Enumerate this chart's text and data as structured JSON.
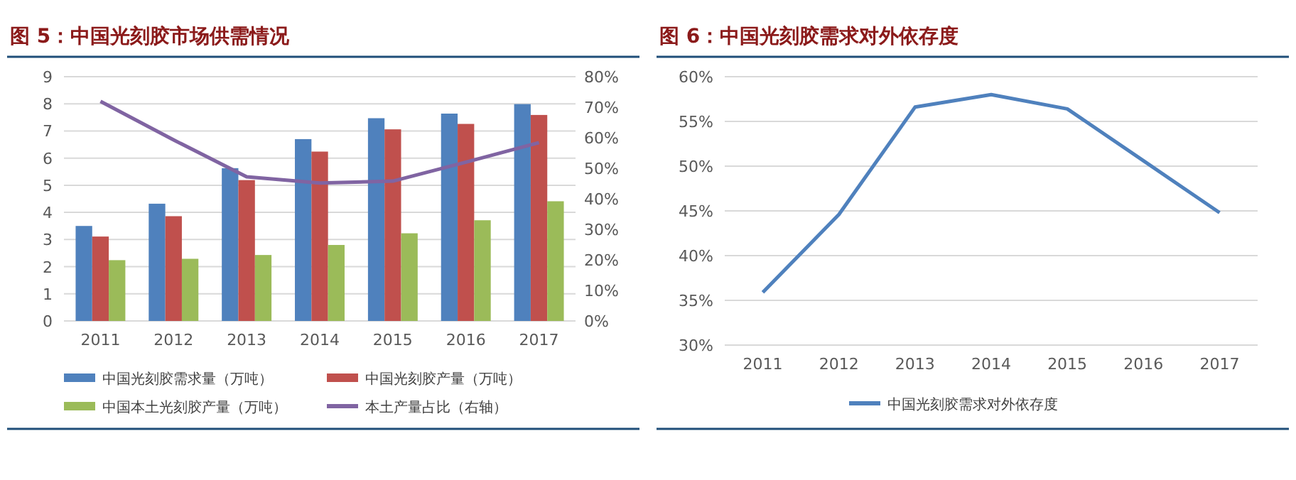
{
  "chart_data": [
    {
      "type": "bar",
      "title": "图 5：中国光刻胶市场供需情况",
      "categories": [
        "2011",
        "2012",
        "2013",
        "2014",
        "2015",
        "2016",
        "2017"
      ],
      "series": [
        {
          "name": "中国光刻胶需求量（万吨）",
          "color": "#4f81bd",
          "values": [
            3.5,
            4.32,
            5.63,
            6.7,
            7.47,
            7.64,
            7.99
          ]
        },
        {
          "name": "中国光刻胶产量（万吨）",
          "color": "#c0504d",
          "values": [
            3.11,
            3.86,
            5.19,
            6.24,
            7.06,
            7.26,
            7.59
          ]
        },
        {
          "name": "中国本土光刻胶产量（万吨）",
          "color": "#9bbb59",
          "values": [
            2.24,
            2.29,
            2.43,
            2.8,
            3.23,
            3.71,
            4.41
          ]
        },
        {
          "name": "本土产量占比（右轴）",
          "color": "#8064a2",
          "type": "line",
          "axis": "y2",
          "values": [
            71.9,
            59.3,
            47.2,
            45.2,
            45.8,
            52.0,
            58.4
          ]
        }
      ],
      "ylim": [
        0,
        9
      ],
      "yticks": [
        0,
        1,
        2,
        3,
        4,
        5,
        6,
        7,
        8,
        9
      ],
      "y2lim": [
        0,
        80
      ],
      "y2ticks": [
        {
          "value": 0,
          "label": "0%"
        },
        {
          "value": 10,
          "label": "10%"
        },
        {
          "value": 20,
          "label": "20%"
        },
        {
          "value": 30,
          "label": "30%"
        },
        {
          "value": 40,
          "label": "40%"
        },
        {
          "value": 50,
          "label": "50%"
        },
        {
          "value": 60,
          "label": "60%"
        },
        {
          "value": 70,
          "label": "70%"
        },
        {
          "value": 80,
          "label": "80%"
        }
      ],
      "grid": "y",
      "legend": "bottom"
    },
    {
      "type": "line",
      "title": "图 6：中国光刻胶需求对外依存度",
      "categories": [
        "2011",
        "2012",
        "2013",
        "2014",
        "2015",
        "2016",
        "2017"
      ],
      "series": [
        {
          "name": "中国光刻胶需求对外依存度",
          "color": "#4f81bd",
          "values": [
            35.9,
            44.6,
            56.6,
            58.0,
            56.4,
            50.6,
            44.8
          ]
        }
      ],
      "ylim": [
        30,
        60
      ],
      "yticks": [
        {
          "value": 30,
          "label": "30%"
        },
        {
          "value": 35,
          "label": "35%"
        },
        {
          "value": 40,
          "label": "40%"
        },
        {
          "value": 45,
          "label": "45%"
        },
        {
          "value": 50,
          "label": "50%"
        },
        {
          "value": 55,
          "label": "55%"
        },
        {
          "value": 60,
          "label": "60%"
        }
      ],
      "grid": "y",
      "legend": "bottom"
    }
  ]
}
